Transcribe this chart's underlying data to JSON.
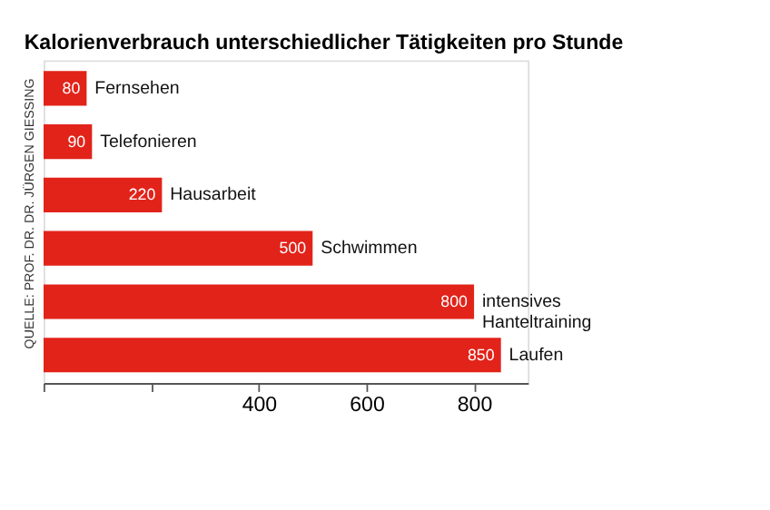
{
  "chart_data": {
    "type": "bar",
    "orientation": "horizontal",
    "title": "Kalorienverbrauch unterschiedlicher Tätigkeiten pro Stunde",
    "categories": [
      "Fernsehen",
      "Telefonieren",
      "Hausarbeit",
      "Schwimmen",
      "intensives Hanteltraining",
      "Laufen"
    ],
    "values": [
      80,
      90,
      220,
      500,
      800,
      850
    ],
    "color": "#e2231a",
    "data_labels": true,
    "xlim": [
      0,
      900
    ],
    "xticks": [
      {
        "value": 0,
        "label": null
      },
      {
        "value": 200,
        "label": null
      },
      400,
      600,
      800
    ],
    "grid": false,
    "tick_labels": "x",
    "annotations": [
      "QUELLE: PROF. DR. DR. JÜRGEN GIESSING"
    ]
  }
}
